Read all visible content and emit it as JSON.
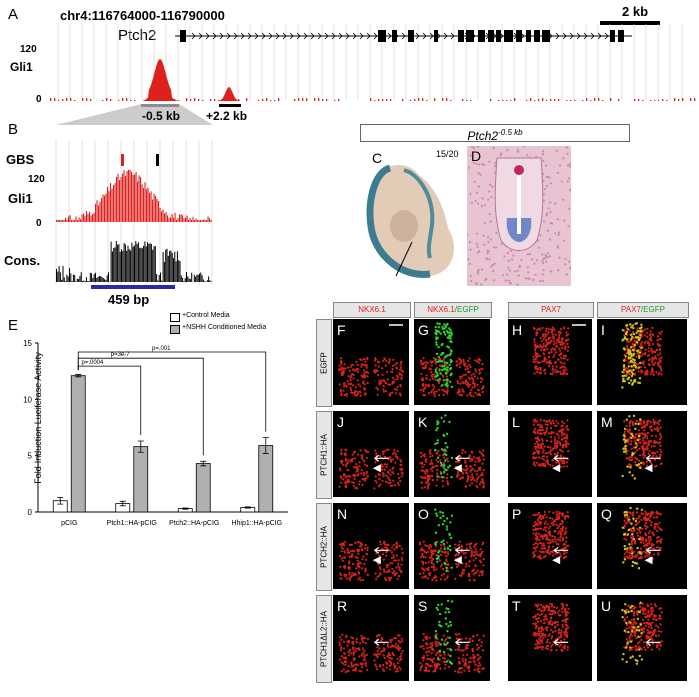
{
  "panel_letters": {
    "A": "A",
    "B": "B",
    "C": "C",
    "D": "D",
    "E": "E",
    "F": "F",
    "G": "G",
    "H": "H",
    "I": "I",
    "J": "J",
    "K": "K",
    "L": "L",
    "M": "M",
    "N": "N",
    "O": "O",
    "P": "P",
    "Q": "Q",
    "R": "R",
    "S": "S",
    "T": "T",
    "U": "U"
  },
  "panelA": {
    "locus": "chr4:116764000-116790000",
    "scale": "2 kb",
    "gene": "Ptch2",
    "track": "Gli1",
    "ytop": "120",
    "ybottom": "0",
    "peak1": "-0.5 kb",
    "peak2": "+2.2 kb"
  },
  "panelB": {
    "gbs": "GBS",
    "gli1": "Gli1",
    "cons": "Cons.",
    "ytop": "120",
    "ybottom": "0",
    "length": "459 bp"
  },
  "panelCD": {
    "title": "Ptch2",
    "title_sup": "-0.5 kb",
    "ratio": "15/20"
  },
  "chart_data": {
    "type": "bar",
    "ylabel": "Fold-Induction Luciferase Activity",
    "ylim": [
      0,
      15
    ],
    "yticks": [
      "0",
      "5",
      "10",
      "15"
    ],
    "categories": [
      "pCIG",
      "Ptch1::HA-pCIG",
      "Ptch2::HA-pCIG",
      "Hhip1::HA-pCIG"
    ],
    "series": [
      {
        "name": "+Control Media",
        "color": "#ffffff",
        "values": [
          1.0,
          0.75,
          0.3,
          0.4
        ],
        "errors": [
          0.3,
          0.2,
          0.05,
          0.05
        ]
      },
      {
        "name": "+NSHH Conditioned Media",
        "color": "#b0b0b0",
        "values": [
          12.1,
          5.8,
          4.3,
          5.9
        ],
        "errors": [
          0.1,
          0.5,
          0.2,
          0.7
        ]
      }
    ],
    "pvalues": [
      "p=.0004",
      "p=3e-7",
      "p=.001"
    ]
  },
  "grid": {
    "columns": [
      {
        "parts": [
          {
            "t": "NKX6.1",
            "c": "#e0201c"
          }
        ]
      },
      {
        "parts": [
          {
            "t": "NKX6.1",
            "c": "#e0201c"
          },
          {
            "t": "/EGFP",
            "c": "#1a9a2a"
          }
        ]
      },
      {
        "parts": [
          {
            "t": "PAX7",
            "c": "#e0201c"
          }
        ]
      },
      {
        "parts": [
          {
            "t": "PAX7",
            "c": "#e0201c"
          },
          {
            "t": "/EGFP",
            "c": "#1a9a2a"
          }
        ]
      }
    ],
    "rows": [
      "EGFP",
      "PTCH1::HA",
      "PTCH2::HA",
      "PTCH1ΔL2::HA"
    ]
  }
}
